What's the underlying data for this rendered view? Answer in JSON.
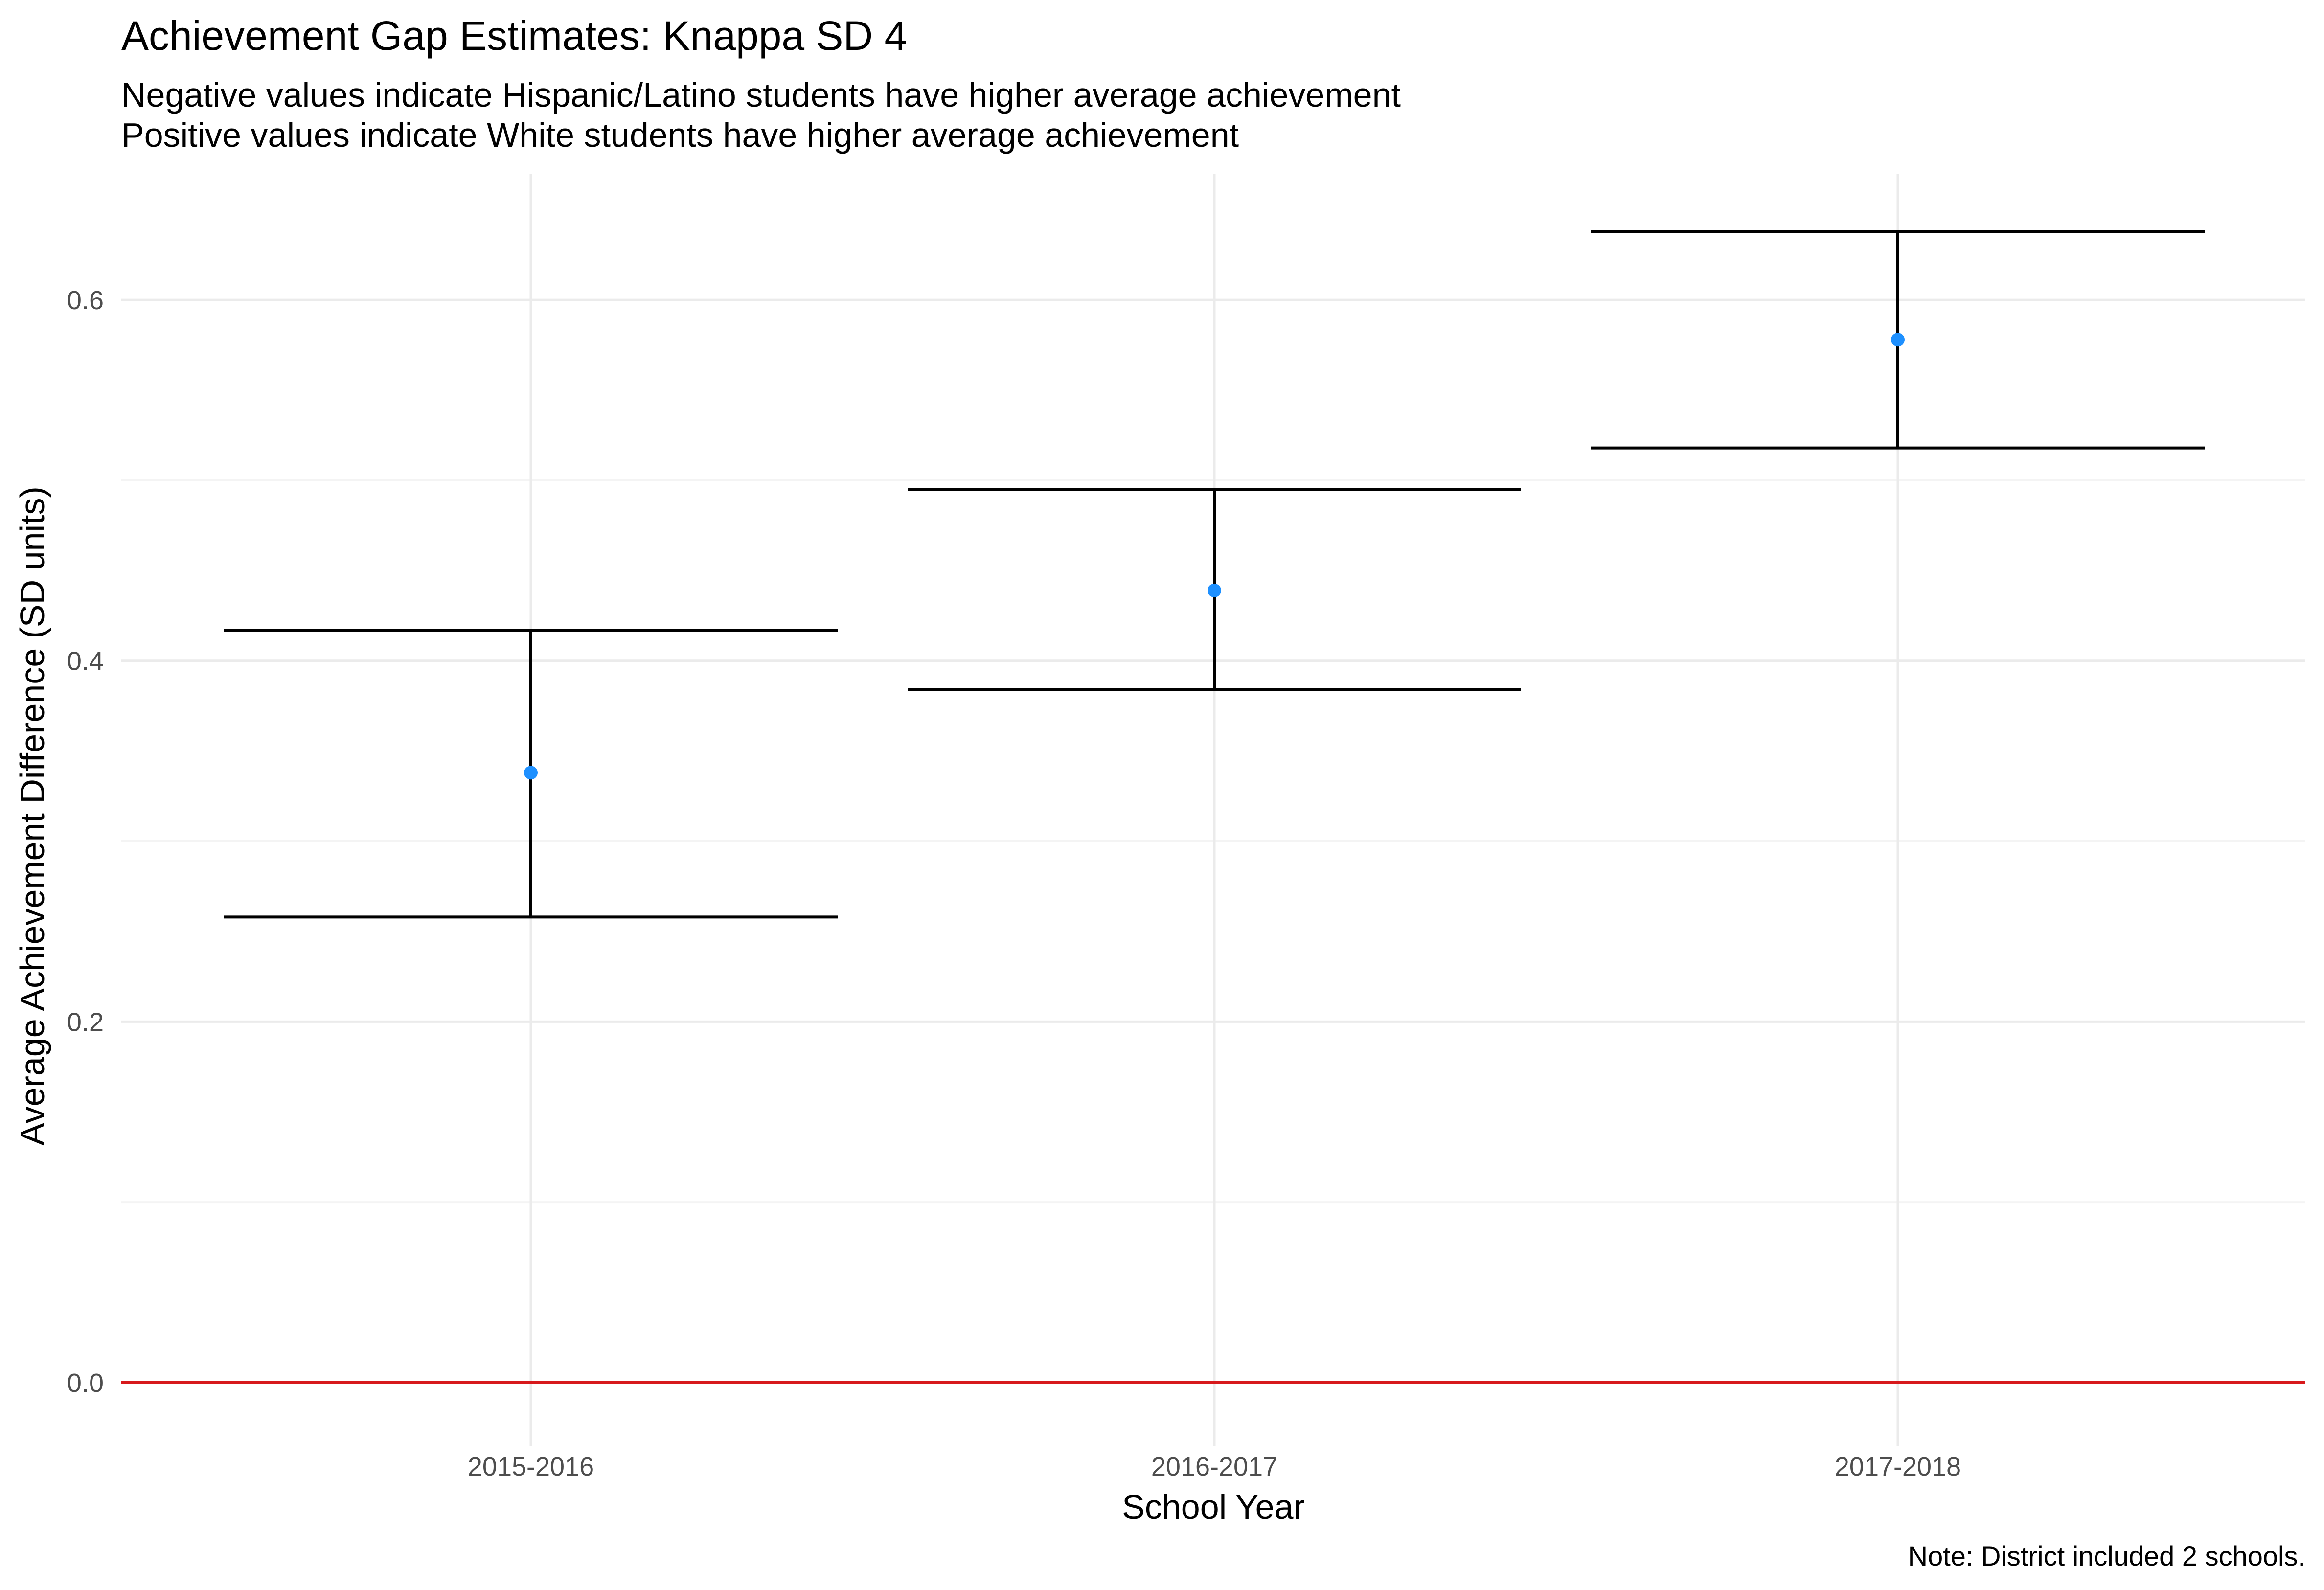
{
  "chart_data": {
    "type": "errorbar",
    "title": "Achievement Gap Estimates: Knappa SD 4",
    "subtitle_lines": [
      "Negative values indicate Hispanic/Latino students have higher average achievement",
      "Positive values indicate White students have higher average achievement"
    ],
    "xlabel": "School Year",
    "ylabel": "Average Achievement Difference (SD units)",
    "caption": "Note: District included 2 schools.",
    "categories": [
      "2015-2016",
      "2016-2017",
      "2017-2018"
    ],
    "estimates": [
      0.338,
      0.439,
      0.578
    ],
    "lower": [
      0.258,
      0.384,
      0.518
    ],
    "upper": [
      0.417,
      0.495,
      0.638
    ],
    "ylim": [
      -0.035,
      0.67
    ],
    "y_ticks": [
      0.0,
      0.2,
      0.4,
      0.6
    ],
    "y_tick_labels": [
      "0.0",
      "0.2",
      "0.4",
      "0.6"
    ],
    "y_minor_ticks": [
      0.1,
      0.3,
      0.5
    ],
    "reference_line": 0.0,
    "grid": true,
    "legend": "none",
    "colors": {
      "point": "#1E90FF",
      "errorbar": "#000000",
      "reference_line": "#D7191C",
      "grid_major": "#EBEBEB",
      "grid_minor": "#F4F4F4",
      "tick_label": "#4D4D4D"
    }
  }
}
